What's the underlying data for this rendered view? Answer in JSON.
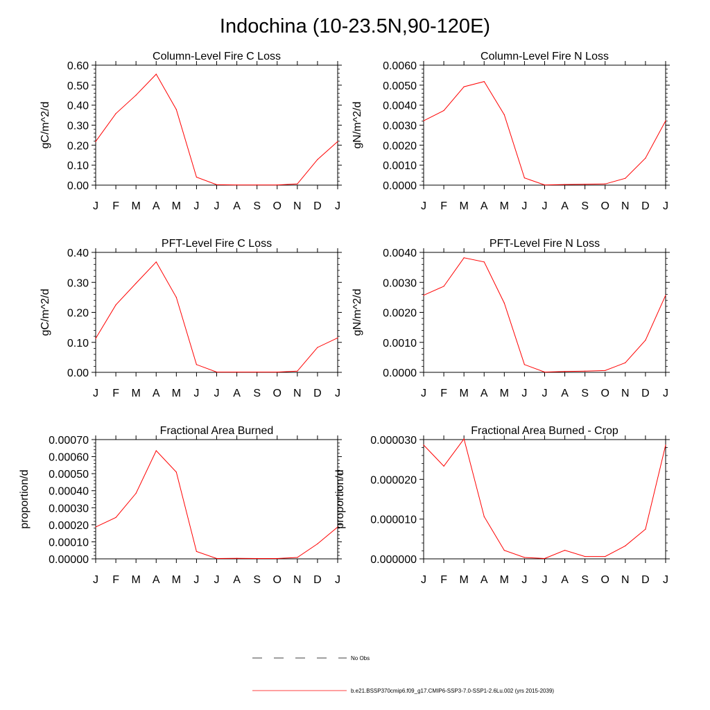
{
  "title": "Indochina (10-23.5N,90-120E)",
  "chart_data": [
    {
      "type": "line",
      "title": "Column-Level Fire C Loss",
      "ylabel": "gC/m^2/d",
      "categories": [
        "J",
        "F",
        "M",
        "A",
        "M",
        "J",
        "J",
        "A",
        "S",
        "O",
        "N",
        "D",
        "J"
      ],
      "ylim": [
        0,
        0.6
      ],
      "yticks": [
        "0.00",
        "0.10",
        "0.20",
        "0.30",
        "0.40",
        "0.50",
        "0.60"
      ],
      "series": [
        {
          "values": [
            0.218,
            0.358,
            0.45,
            0.555,
            0.378,
            0.04,
            0.002,
            0.001,
            0.001,
            0.001,
            0.006,
            0.128,
            0.218
          ]
        }
      ]
    },
    {
      "type": "line",
      "title": "Column-Level Fire N Loss",
      "ylabel": "gN/m^2/d",
      "categories": [
        "J",
        "F",
        "M",
        "A",
        "M",
        "J",
        "J",
        "A",
        "S",
        "O",
        "N",
        "D",
        "J"
      ],
      "ylim": [
        0,
        0.006
      ],
      "yticks": [
        "0.0000",
        "0.0010",
        "0.0020",
        "0.0030",
        "0.0040",
        "0.0050",
        "0.0060"
      ],
      "series": [
        {
          "values": [
            0.00322,
            0.00373,
            0.00492,
            0.00518,
            0.00352,
            0.00036,
            1e-05,
            3e-05,
            4e-05,
            6e-05,
            0.00034,
            0.00135,
            0.00322
          ]
        }
      ]
    },
    {
      "type": "line",
      "title": "PFT-Level Fire C Loss",
      "ylabel": "gC/m^2/d",
      "categories": [
        "J",
        "F",
        "M",
        "A",
        "M",
        "J",
        "J",
        "A",
        "S",
        "O",
        "N",
        "D",
        "J"
      ],
      "ylim": [
        0,
        0.4
      ],
      "yticks": [
        "0.00",
        "0.10",
        "0.20",
        "0.30",
        "0.40"
      ],
      "series": [
        {
          "values": [
            0.113,
            0.225,
            0.297,
            0.368,
            0.25,
            0.026,
            0.001,
            0.001,
            0.001,
            0.001,
            0.004,
            0.083,
            0.115
          ]
        }
      ]
    },
    {
      "type": "line",
      "title": "PFT-Level Fire N Loss",
      "ylabel": "gN/m^2/d",
      "categories": [
        "J",
        "F",
        "M",
        "A",
        "M",
        "J",
        "J",
        "A",
        "S",
        "O",
        "N",
        "D",
        "J"
      ],
      "ylim": [
        0,
        0.004
      ],
      "yticks": [
        "0.0000",
        "0.0010",
        "0.0020",
        "0.0030",
        "0.0040"
      ],
      "series": [
        {
          "values": [
            0.00257,
            0.00287,
            0.00382,
            0.00368,
            0.00231,
            0.00026,
            1e-05,
            3e-05,
            4e-05,
            6e-05,
            0.00032,
            0.00107,
            0.00257
          ]
        }
      ]
    },
    {
      "type": "line",
      "title": "Fractional Area Burned",
      "ylabel": "proportion/d",
      "categories": [
        "J",
        "F",
        "M",
        "A",
        "M",
        "J",
        "J",
        "A",
        "S",
        "O",
        "N",
        "D",
        "J"
      ],
      "ylim": [
        0,
        0.0007
      ],
      "yticks": [
        "0.00000",
        "0.00010",
        "0.00020",
        "0.00030",
        "0.00040",
        "0.00050",
        "0.00060",
        "0.00070"
      ],
      "series": [
        {
          "values": [
            0.000187,
            0.000243,
            0.000385,
            0.000635,
            0.000509,
            4.3e-05,
            2e-06,
            3e-06,
            2e-06,
            2e-06,
            8e-06,
            8.8e-05,
            0.000187
          ]
        }
      ]
    },
    {
      "type": "line",
      "title": "Fractional Area Burned - Crop",
      "ylabel": "proportion/d",
      "categories": [
        "J",
        "F",
        "M",
        "A",
        "M",
        "J",
        "J",
        "A",
        "S",
        "O",
        "N",
        "D",
        "J"
      ],
      "ylim": [
        0,
        3.5e-05
      ],
      "yticks": [
        "0.000000",
        "0.000010",
        "0.000020",
        "0.000030"
      ],
      "series": [
        {
          "values": [
            3.34e-05,
            2.72e-05,
            3.52e-05,
            1.24e-05,
            2.5e-06,
            4e-07,
            1e-07,
            2.5e-06,
            7e-07,
            7e-07,
            3.8e-06,
            8.7e-06,
            3.34e-05
          ]
        }
      ]
    }
  ],
  "legend": [
    {
      "label": "No Obs",
      "style": "dashed",
      "color": "#000000"
    },
    {
      "label": "b.e21.BSSP370cmip6.f09_g17.CMIP6-SSP3-7.0-SSP1-2.6Lu.002 (yrs 2015-2039)",
      "style": "solid",
      "color": "#ff0000"
    }
  ],
  "colors": {
    "series": "#ff0000",
    "axes": "#000000"
  }
}
